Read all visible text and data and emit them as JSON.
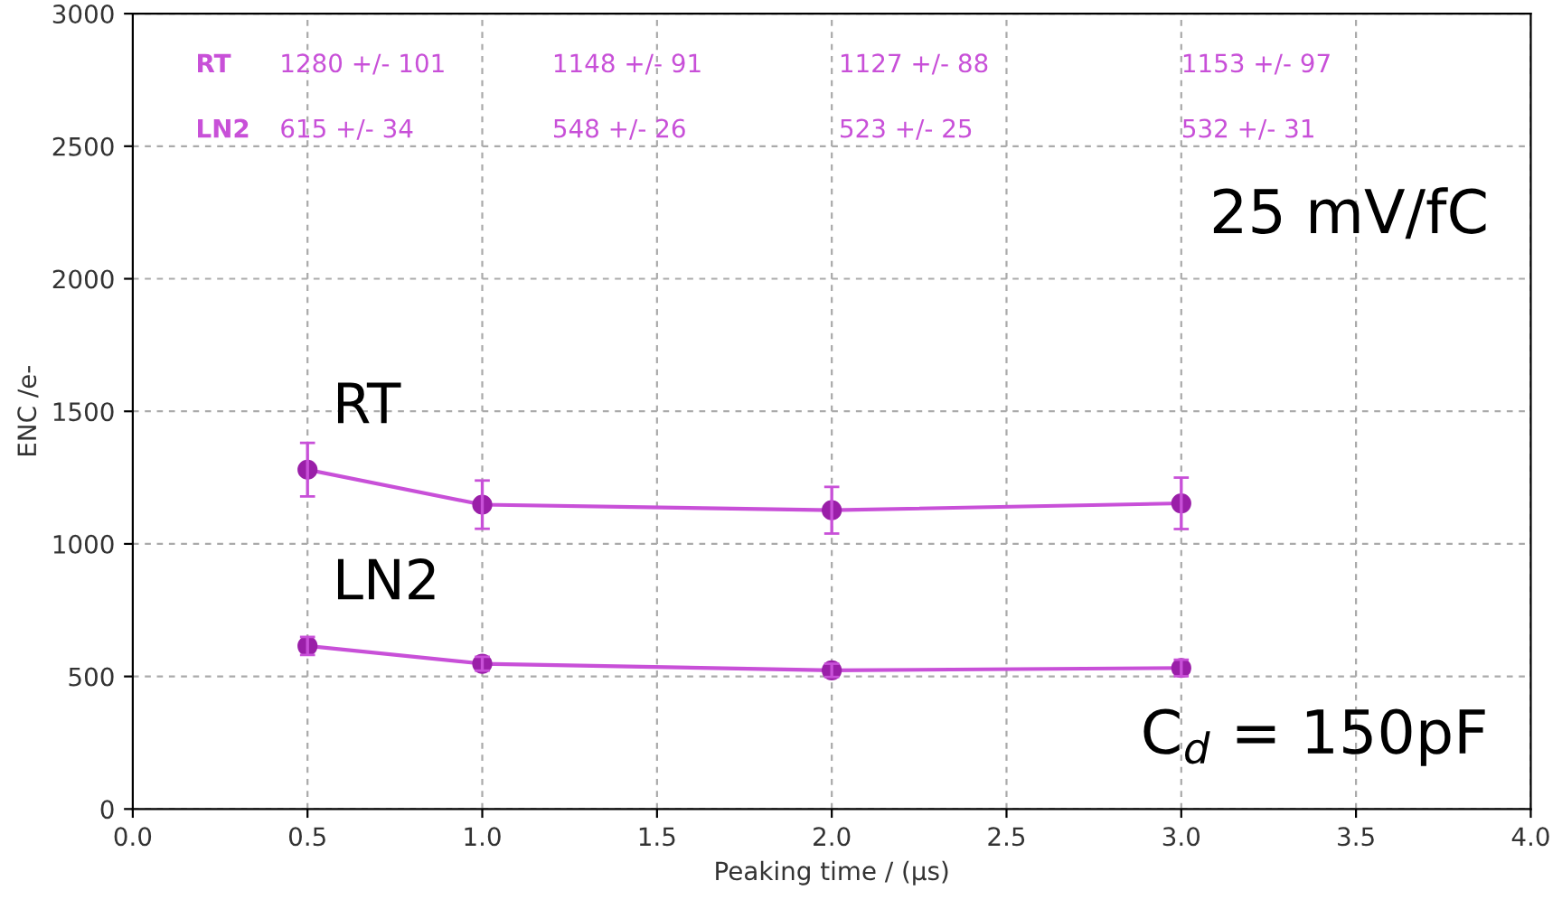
{
  "chart_data": {
    "type": "line",
    "xlabel": "Peaking time / (μs)",
    "ylabel": "ENC /e-",
    "x": [
      0.5,
      1.0,
      2.0,
      3.0
    ],
    "series": [
      {
        "name": "RT",
        "color": "#c850d8",
        "values": [
          1280,
          1148,
          1127,
          1153
        ],
        "errors": [
          101,
          91,
          88,
          97
        ]
      },
      {
        "name": "LN2",
        "color": "#c850d8",
        "values": [
          615,
          548,
          523,
          532
        ],
        "errors": [
          34,
          26,
          25,
          31
        ]
      }
    ],
    "annotations": [
      "RT",
      "1280 +/- 101",
      "1148 +/- 91",
      "1127 +/- 88",
      "1153 +/- 97",
      "LN2",
      "615 +/- 34",
      "548 +/- 26",
      "523 +/- 25",
      "532 +/- 31",
      "25 mV/fC",
      "C$_{d}$ = 150pF"
    ],
    "xlim": [
      0.0,
      4.0
    ],
    "ylim": [
      0,
      3000
    ],
    "xticks": [
      {
        "value": 0.0,
        "label": "0.0"
      },
      {
        "value": 0.5,
        "label": "0.5"
      },
      {
        "value": 1.0,
        "label": "1.0"
      },
      {
        "value": 1.5,
        "label": "1.5"
      },
      {
        "value": 2.0,
        "label": "2.0"
      },
      {
        "value": 2.5,
        "label": "2.5"
      },
      {
        "value": 3.0,
        "label": "3.0"
      },
      {
        "value": 3.5,
        "label": "3.5"
      },
      {
        "value": 4.0,
        "label": "4.0"
      }
    ],
    "yticks": [
      0,
      500,
      1000,
      1500,
      2000,
      2500,
      3000
    ],
    "grid": true,
    "marker": "circle",
    "line_style": "solid"
  }
}
